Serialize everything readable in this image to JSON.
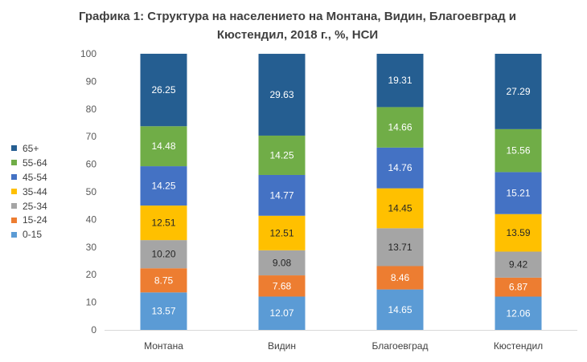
{
  "chart_data": {
    "type": "bar",
    "stacked": true,
    "title": "Графика 1: Структура на населението на Монтана, Видин, Благоевград и Кюстендил, 2018 г., %, НСИ",
    "title_lines": [
      "Графика 1: Структура на населението на Монтана, Видин, Благоевград и",
      "Кюстендил, 2018 г., %, НСИ"
    ],
    "categories": [
      "Монтана",
      "Видин",
      "Благоевград",
      "Кюстендил"
    ],
    "ylim": [
      0,
      100
    ],
    "yticks": [
      "0",
      "10",
      "20",
      "30",
      "40",
      "50",
      "60",
      "70",
      "80",
      "90",
      "100"
    ],
    "xlabel": "",
    "ylabel": "",
    "legend_position": "left",
    "series": [
      {
        "name": "0-15",
        "color": "#5b9bd5",
        "values": [
          13.57,
          12.07,
          14.65,
          12.06
        ],
        "labels": [
          "13.57",
          "12.07",
          "14.65",
          "12.06"
        ]
      },
      {
        "name": "15-24",
        "color": "#ed7d31",
        "values": [
          8.75,
          7.68,
          8.46,
          6.87
        ],
        "labels": [
          "8.75",
          "7.68",
          "8.46",
          "6.87"
        ]
      },
      {
        "name": "25-34",
        "color": "#a5a5a5",
        "values": [
          10.2,
          9.08,
          13.71,
          9.42
        ],
        "labels": [
          "10.20",
          "9.08",
          "13.71",
          "9.42"
        ]
      },
      {
        "name": "35-44",
        "color": "#ffc000",
        "values": [
          12.51,
          12.51,
          14.45,
          13.59
        ],
        "labels": [
          "12.51",
          "12.51",
          "14.45",
          "13.59"
        ]
      },
      {
        "name": "45-54",
        "color": "#4472c4",
        "values": [
          14.25,
          14.77,
          14.76,
          15.21
        ],
        "labels": [
          "14.25",
          "14.77",
          "14.76",
          "15.21"
        ]
      },
      {
        "name": "55-64",
        "color": "#70ad47",
        "values": [
          14.48,
          14.25,
          14.66,
          15.56
        ],
        "labels": [
          "14.48",
          "14.25",
          "14.66",
          "15.56"
        ]
      },
      {
        "name": "65+",
        "color": "#255e91",
        "values": [
          26.25,
          29.63,
          19.31,
          27.29
        ],
        "labels": [
          "26.25",
          "29.63",
          "19.31",
          "27.29"
        ]
      }
    ]
  }
}
